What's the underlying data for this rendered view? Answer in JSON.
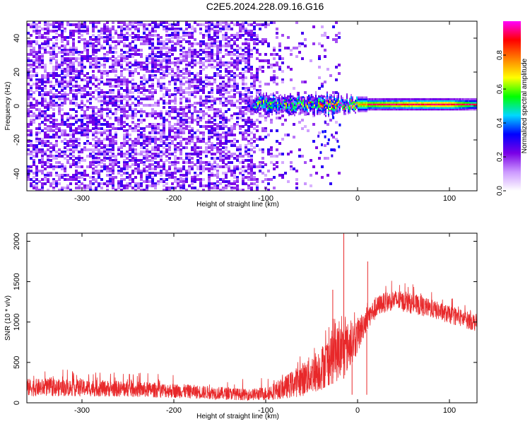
{
  "title": "C2E5.2024.228.09.16.G16",
  "chart_data": [
    {
      "type": "heatmap",
      "xlabel": "Height of straight line (km)",
      "ylabel": "Frequency (Hz)",
      "xlim": [
        -360,
        130
      ],
      "ylim": [
        -50,
        50
      ],
      "xticks": [
        -300,
        -200,
        -100,
        0,
        100
      ],
      "yticks": [
        -40,
        -20,
        0,
        20,
        40
      ],
      "colorbar": {
        "label": "Normalized spectral amplitude",
        "range": [
          0,
          1
        ],
        "ticks": [
          0.0,
          0.2,
          0.4,
          0.6,
          0.8
        ],
        "colormap": [
          "#ffffff",
          "#cc99ff",
          "#7a00e6",
          "#0000ff",
          "#00d8ff",
          "#00ff00",
          "#ffff00",
          "#ff8000",
          "#ff0000",
          "#ff00ff"
        ]
      },
      "signal_band": {
        "description_points": [
          {
            "x": -115,
            "freq": 2,
            "amp": 0.35
          },
          {
            "x": -60,
            "freq": 2,
            "amp": 0.45
          },
          {
            "x": -30,
            "freq": 1,
            "amp": 0.6
          },
          {
            "x": 0,
            "freq": 1,
            "amp": 0.75
          },
          {
            "x": 50,
            "freq": 1,
            "amp": 0.85
          },
          {
            "x": 100,
            "freq": 1,
            "amp": 0.9
          },
          {
            "x": 130,
            "freq": 1,
            "amp": 0.6
          }
        ]
      }
    },
    {
      "type": "line",
      "xlabel": "Height of straight line (km)",
      "ylabel": "SNR (10 * v/v)",
      "xlim": [
        -360,
        130
      ],
      "ylim": [
        0,
        2100
      ],
      "xticks": [
        -300,
        -200,
        -100,
        0,
        100
      ],
      "yticks": [
        0,
        500,
        1000,
        1500,
        2000
      ],
      "series": [
        {
          "color": "#e8282a",
          "envelope": [
            {
              "x": -360,
              "low": 80,
              "high": 300
            },
            {
              "x": -300,
              "low": 80,
              "high": 290
            },
            {
              "x": -250,
              "low": 70,
              "high": 270
            },
            {
              "x": -200,
              "low": 60,
              "high": 240
            },
            {
              "x": -150,
              "low": 40,
              "high": 200
            },
            {
              "x": -120,
              "low": 30,
              "high": 170
            },
            {
              "x": -100,
              "low": 30,
              "high": 200
            },
            {
              "x": -80,
              "low": 50,
              "high": 320
            },
            {
              "x": -60,
              "low": 80,
              "high": 500
            },
            {
              "x": -40,
              "low": 150,
              "high": 700
            },
            {
              "x": -25,
              "low": 250,
              "high": 950
            },
            {
              "x": -15,
              "low": 300,
              "high": 1000
            },
            {
              "x": -5,
              "low": 500,
              "high": 1000
            },
            {
              "x": 0,
              "low": 600,
              "high": 1050
            },
            {
              "x": 10,
              "low": 900,
              "high": 1200
            },
            {
              "x": 25,
              "low": 1100,
              "high": 1350
            },
            {
              "x": 40,
              "low": 1150,
              "high": 1400
            },
            {
              "x": 60,
              "low": 1100,
              "high": 1350
            },
            {
              "x": 80,
              "low": 1050,
              "high": 1280
            },
            {
              "x": 100,
              "low": 980,
              "high": 1200
            },
            {
              "x": 115,
              "low": 930,
              "high": 1150
            },
            {
              "x": 130,
              "low": 880,
              "high": 1100
            }
          ],
          "spikes": [
            {
              "x": -15,
              "y": 2100
            },
            {
              "x": 11,
              "y": 1750
            },
            {
              "x": -27,
              "y": 1400
            },
            {
              "x": -6,
              "y": 100
            },
            {
              "x": 10,
              "y": 100
            }
          ]
        }
      ]
    }
  ]
}
